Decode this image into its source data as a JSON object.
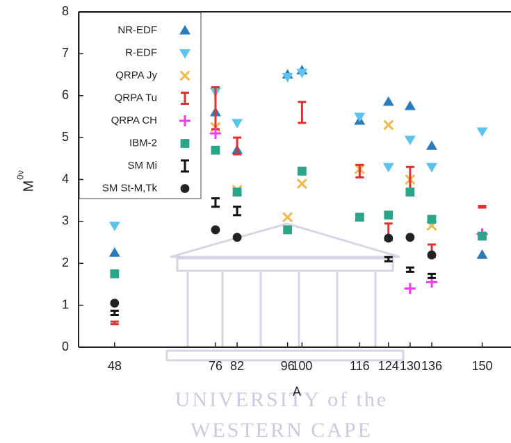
{
  "chart_data": {
    "type": "scatter",
    "xlabel": "A",
    "ylabel": "M",
    "ylabel_sup": "0ν",
    "x": [
      48,
      76,
      82,
      96,
      100,
      116,
      124,
      130,
      136,
      150
    ],
    "xlim": [
      38,
      158
    ],
    "xticks": [
      48,
      76,
      82,
      96,
      100,
      116,
      124,
      130,
      136,
      150
    ],
    "ylim": [
      0,
      8
    ],
    "yticks": [
      0,
      1,
      2,
      3,
      4,
      5,
      6,
      7,
      8
    ],
    "grid": false,
    "legend": "upper left",
    "series": [
      {
        "name": "NR-EDF",
        "marker": "triangle-up",
        "color": "#2b7bba",
        "values": [
          2.25,
          5.6,
          4.7,
          6.5,
          6.6,
          5.4,
          5.85,
          5.75,
          4.8,
          2.2
        ]
      },
      {
        "name": "R-EDF",
        "marker": "triangle-down",
        "color": "#5ec2ee",
        "values": [
          2.9,
          6.1,
          5.35,
          6.45,
          6.55,
          5.5,
          4.3,
          4.95,
          4.3,
          5.15
        ]
      },
      {
        "name": "QRPA Jy",
        "marker": "cross",
        "color": "#f0b848",
        "values": [
          null,
          5.25,
          3.75,
          3.1,
          3.9,
          4.25,
          5.3,
          4.0,
          2.9,
          null
        ]
      },
      {
        "name": "QRPA Tu",
        "marker": "errorbar",
        "color": "#e03030",
        "values": [
          0.58,
          5.7,
          4.8,
          2.8,
          5.6,
          4.2,
          2.75,
          4.0,
          2.3,
          3.35
        ],
        "errors": [
          0.03,
          0.5,
          0.2,
          0.05,
          0.25,
          0.15,
          0.2,
          0.3,
          0.15,
          0.02
        ]
      },
      {
        "name": "QRPA CH",
        "marker": "plus",
        "color": "#f03cf0",
        "values": [
          null,
          5.1,
          null,
          null,
          null,
          null,
          null,
          1.4,
          1.55,
          2.7
        ]
      },
      {
        "name": "IBM-2",
        "marker": "square",
        "color": "#2aa58a",
        "values": [
          1.75,
          4.7,
          3.7,
          2.8,
          4.2,
          3.1,
          3.15,
          3.7,
          3.05,
          2.65
        ]
      },
      {
        "name": "SM Mi",
        "marker": "errorbar",
        "color": "#111111",
        "values": [
          0.82,
          3.45,
          3.25,
          null,
          null,
          null,
          2.1,
          1.85,
          1.7,
          null
        ],
        "errors": [
          0.05,
          0.1,
          0.1,
          null,
          null,
          null,
          0.05,
          0.05,
          0.05,
          null
        ]
      },
      {
        "name": "SM St-M,Tk",
        "marker": "circle",
        "color": "#222222",
        "values": [
          1.05,
          2.8,
          2.62,
          null,
          null,
          null,
          2.6,
          2.62,
          2.2,
          null
        ]
      }
    ],
    "watermark": [
      "UNIVERSITY of the",
      "WESTERN CAPE"
    ]
  }
}
